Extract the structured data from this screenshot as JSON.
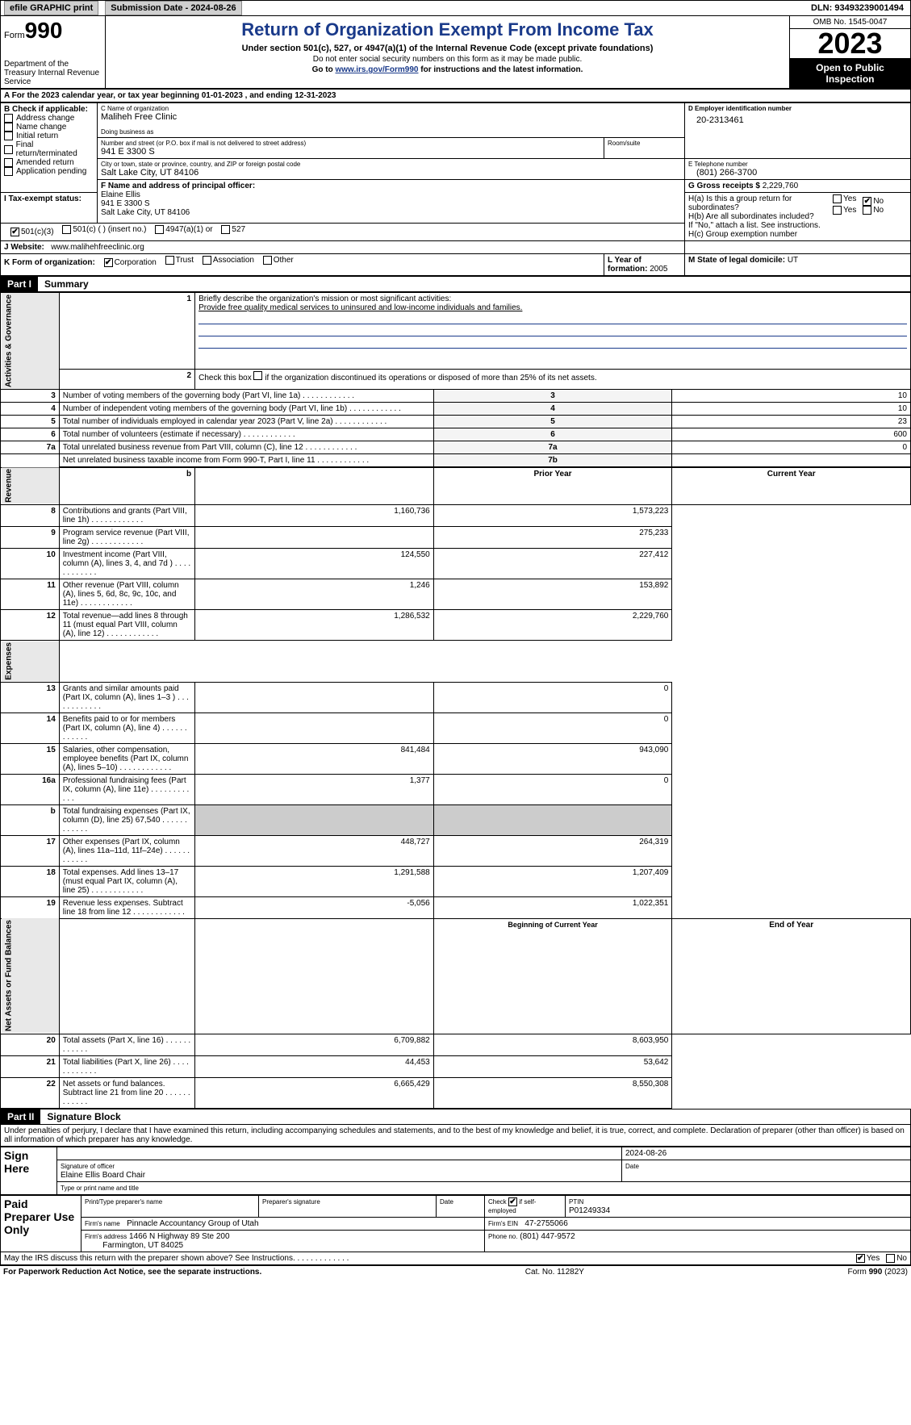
{
  "topbar": {
    "efile": "efile GRAPHIC print",
    "submission": "Submission Date - 2024-08-26",
    "dln": "DLN: 93493239001494"
  },
  "header": {
    "form_label": "Form",
    "form_no": "990",
    "title": "Return of Organization Exempt From Income Tax",
    "subtitle": "Under section 501(c), 527, or 4947(a)(1) of the Internal Revenue Code (except private foundations)",
    "ssn_warn": "Do not enter social security numbers on this form as it may be made public.",
    "goto": "Go to www.irs.gov/Form990 for instructions and the latest information.",
    "dept": "Department of the Treasury Internal Revenue Service",
    "omb": "OMB No. 1545-0047",
    "year": "2023",
    "open": "Open to Public Inspection"
  },
  "rowA": "A  For the 2023 calendar year, or tax year beginning 01-01-2023   , and ending 12-31-2023",
  "boxB": {
    "title": "B Check if applicable:",
    "items": [
      "Address change",
      "Name change",
      "Initial return",
      "Final return/terminated",
      "Amended return",
      "Application pending"
    ]
  },
  "boxC": {
    "label_name": "C Name of organization",
    "name": "Maliheh Free Clinic",
    "dba_label": "Doing business as",
    "dba": "",
    "street_label": "Number and street (or P.O. box if mail is not delivered to street address)",
    "street": "941 E 3300 S",
    "room_label": "Room/suite",
    "city_label": "City or town, state or province, country, and ZIP or foreign postal code",
    "city": "Salt Lake City, UT  84106"
  },
  "boxD": {
    "label": "D Employer identification number",
    "val": "20-2313461"
  },
  "boxE": {
    "label": "E Telephone number",
    "val": "(801) 266-3700"
  },
  "boxG": {
    "label": "G Gross receipts $",
    "val": "2,229,760"
  },
  "boxF": {
    "label": "F  Name and address of principal officer:",
    "name": "Elaine Ellis",
    "addr1": "941 E 3300 S",
    "addr2": "Salt Lake City, UT  84106"
  },
  "boxH": {
    "a_label": "H(a)  Is this a group return for subordinates?",
    "b_label": "H(b)  Are all subordinates included?",
    "note": "If \"No,\" attach a list. See instructions.",
    "c_label": "H(c)  Group exemption number"
  },
  "boxI": {
    "label": "I  Tax-exempt status:",
    "opts": [
      "501(c)(3)",
      "501(c) (  ) (insert no.)",
      "4947(a)(1) or",
      "527"
    ]
  },
  "boxJ": {
    "label": "J  Website:",
    "val": "www.malihehfreeclinic.org"
  },
  "boxK": {
    "label": "K Form of organization:",
    "opts": [
      "Corporation",
      "Trust",
      "Association",
      "Other"
    ]
  },
  "boxL": {
    "label": "L Year of formation:",
    "val": "2005"
  },
  "boxM": {
    "label": "M State of legal domicile:",
    "val": "UT"
  },
  "part1": {
    "hdr": "Part I",
    "title": "Summary"
  },
  "summary": {
    "line1_label": "Briefly describe the organization's mission or most significant activities:",
    "line1_val": "Provide free quality medical services to uninsured and low-income individuals and families.",
    "line2": "Check this box      if the organization discontinued its operations or disposed of more than 25% of its net assets.",
    "gov_lines": [
      {
        "n": "3",
        "t": "Number of voting members of the governing body (Part VI, line 1a)",
        "b": "3",
        "v": "10"
      },
      {
        "n": "4",
        "t": "Number of independent voting members of the governing body (Part VI, line 1b)",
        "b": "4",
        "v": "10"
      },
      {
        "n": "5",
        "t": "Total number of individuals employed in calendar year 2023 (Part V, line 2a)",
        "b": "5",
        "v": "23"
      },
      {
        "n": "6",
        "t": "Total number of volunteers (estimate if necessary)",
        "b": "6",
        "v": "600"
      },
      {
        "n": "7a",
        "t": "Total unrelated business revenue from Part VIII, column (C), line 12",
        "b": "7a",
        "v": "0"
      },
      {
        "n": "",
        "t": "Net unrelated business taxable income from Form 990-T, Part I, line 11",
        "b": "7b",
        "v": ""
      }
    ],
    "prior_hdr": "Prior Year",
    "curr_hdr": "Current Year",
    "rev_lines": [
      {
        "n": "8",
        "t": "Contributions and grants (Part VIII, line 1h)",
        "p": "1,160,736",
        "c": "1,573,223"
      },
      {
        "n": "9",
        "t": "Program service revenue (Part VIII, line 2g)",
        "p": "",
        "c": "275,233"
      },
      {
        "n": "10",
        "t": "Investment income (Part VIII, column (A), lines 3, 4, and 7d )",
        "p": "124,550",
        "c": "227,412"
      },
      {
        "n": "11",
        "t": "Other revenue (Part VIII, column (A), lines 5, 6d, 8c, 9c, 10c, and 11e)",
        "p": "1,246",
        "c": "153,892"
      },
      {
        "n": "12",
        "t": "Total revenue—add lines 8 through 11 (must equal Part VIII, column (A), line 12)",
        "p": "1,286,532",
        "c": "2,229,760"
      }
    ],
    "exp_lines": [
      {
        "n": "13",
        "t": "Grants and similar amounts paid (Part IX, column (A), lines 1–3 )",
        "p": "",
        "c": "0"
      },
      {
        "n": "14",
        "t": "Benefits paid to or for members (Part IX, column (A), line 4)",
        "p": "",
        "c": "0"
      },
      {
        "n": "15",
        "t": "Salaries, other compensation, employee benefits (Part IX, column (A), lines 5–10)",
        "p": "841,484",
        "c": "943,090"
      },
      {
        "n": "16a",
        "t": "Professional fundraising fees (Part IX, column (A), line 11e)",
        "p": "1,377",
        "c": "0"
      },
      {
        "n": "b",
        "t": "Total fundraising expenses (Part IX, column (D), line 25) 67,540",
        "p": "GREY",
        "c": "GREY"
      },
      {
        "n": "17",
        "t": "Other expenses (Part IX, column (A), lines 11a–11d, 11f–24e)",
        "p": "448,727",
        "c": "264,319"
      },
      {
        "n": "18",
        "t": "Total expenses. Add lines 13–17 (must equal Part IX, column (A), line 25)",
        "p": "1,291,588",
        "c": "1,207,409"
      },
      {
        "n": "19",
        "t": "Revenue less expenses. Subtract line 18 from line 12",
        "p": "-5,056",
        "c": "1,022,351"
      }
    ],
    "na_hdr_p": "Beginning of Current Year",
    "na_hdr_c": "End of Year",
    "na_lines": [
      {
        "n": "20",
        "t": "Total assets (Part X, line 16)",
        "p": "6,709,882",
        "c": "8,603,950"
      },
      {
        "n": "21",
        "t": "Total liabilities (Part X, line 26)",
        "p": "44,453",
        "c": "53,642"
      },
      {
        "n": "22",
        "t": "Net assets or fund balances. Subtract line 21 from line 20",
        "p": "6,665,429",
        "c": "8,550,308"
      }
    ],
    "side_gov": "Activities & Governance",
    "side_rev": "Revenue",
    "side_exp": "Expenses",
    "side_na": "Net Assets or Fund Balances"
  },
  "part2": {
    "hdr": "Part II",
    "title": "Signature Block"
  },
  "penalty": "Under penalties of perjury, I declare that I have examined this return, including accompanying schedules and statements, and to the best of my knowledge and belief, it is true, correct, and complete. Declaration of preparer (other than officer) is based on all information of which preparer has any knowledge.",
  "sign": {
    "here": "Sign Here",
    "date": "2024-08-26",
    "sig_label": "Signature of officer",
    "name": "Elaine Ellis  Board Chair",
    "name_label": "Type or print name and title",
    "date_label": "Date"
  },
  "preparer": {
    "label": "Paid Preparer Use Only",
    "name_label": "Print/Type preparer's name",
    "sig_label": "Preparer's signature",
    "date_label": "Date",
    "self_emp": "Check       if self-employed",
    "ptin_label": "PTIN",
    "ptin": "P01249334",
    "firm_name_label": "Firm's name",
    "firm_name": "Pinnacle Accountancy Group of Utah",
    "firm_ein_label": "Firm's EIN",
    "firm_ein": "47-2755066",
    "firm_addr_label": "Firm's address",
    "firm_addr": "1466 N Highway 89 Ste 200",
    "firm_city": "Farmington, UT  84025",
    "phone_label": "Phone no.",
    "phone": "(801) 447-9572"
  },
  "discuss": "May the IRS discuss this return with the preparer shown above? See Instructions.",
  "footer": {
    "left": "For Paperwork Reduction Act Notice, see the separate instructions.",
    "mid": "Cat. No. 11282Y",
    "right": "Form 990 (2023)"
  },
  "yn": {
    "yes": "Yes",
    "no": "No"
  }
}
